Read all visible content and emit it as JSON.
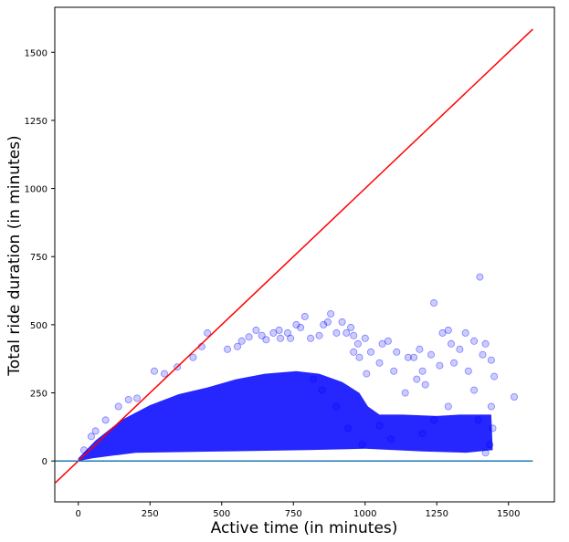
{
  "chart_data": {
    "type": "scatter",
    "title": "",
    "xlabel": "Active time (in minutes)",
    "ylabel": "Total ride duration (in minutes)",
    "xlim": [
      -82,
      1660
    ],
    "ylim": [
      -150,
      1665
    ],
    "x_ticks": [
      0,
      250,
      500,
      750,
      1000,
      1250,
      1500
    ],
    "y_ticks": [
      0,
      250,
      500,
      750,
      1000,
      1250,
      1500
    ],
    "grid": false,
    "point_color": "#0000ff",
    "point_opacity": 0.2,
    "reference_lines": [
      {
        "kind": "identity",
        "color": "#ff0000",
        "x": [
          -80,
          1585
        ],
        "y": [
          -80,
          1585
        ]
      },
      {
        "kind": "zero",
        "color": "#1f77b4",
        "x": [
          -80,
          1585
        ],
        "y": [
          0,
          0
        ]
      }
    ],
    "points": [
      [
        20,
        40
      ],
      [
        45,
        90
      ],
      [
        60,
        110
      ],
      [
        95,
        150
      ],
      [
        140,
        200
      ],
      [
        175,
        225
      ],
      [
        205,
        230
      ],
      [
        265,
        330
      ],
      [
        300,
        320
      ],
      [
        345,
        345
      ],
      [
        400,
        380
      ],
      [
        430,
        420
      ],
      [
        450,
        470
      ],
      [
        520,
        410
      ],
      [
        555,
        420
      ],
      [
        570,
        440
      ],
      [
        595,
        455
      ],
      [
        620,
        480
      ],
      [
        640,
        460
      ],
      [
        655,
        445
      ],
      [
        680,
        470
      ],
      [
        700,
        480
      ],
      [
        705,
        450
      ],
      [
        730,
        470
      ],
      [
        740,
        450
      ],
      [
        760,
        500
      ],
      [
        775,
        490
      ],
      [
        790,
        530
      ],
      [
        810,
        450
      ],
      [
        840,
        460
      ],
      [
        855,
        500
      ],
      [
        870,
        510
      ],
      [
        880,
        540
      ],
      [
        900,
        470
      ],
      [
        920,
        510
      ],
      [
        935,
        470
      ],
      [
        950,
        490
      ],
      [
        960,
        460
      ],
      [
        975,
        430
      ],
      [
        1000,
        450
      ],
      [
        1020,
        400
      ],
      [
        1060,
        430
      ],
      [
        1080,
        440
      ],
      [
        1110,
        400
      ],
      [
        1150,
        380
      ],
      [
        1170,
        380
      ],
      [
        1190,
        410
      ],
      [
        1200,
        330
      ],
      [
        1230,
        390
      ],
      [
        1240,
        580
      ],
      [
        1270,
        470
      ],
      [
        1290,
        480
      ],
      [
        1300,
        430
      ],
      [
        1330,
        410
      ],
      [
        1350,
        470
      ],
      [
        1380,
        440
      ],
      [
        1400,
        675
      ],
      [
        1420,
        430
      ],
      [
        1440,
        370
      ],
      [
        1450,
        310
      ],
      [
        1520,
        235
      ],
      [
        1180,
        300
      ],
      [
        1210,
        280
      ],
      [
        1260,
        350
      ],
      [
        1310,
        360
      ],
      [
        1360,
        330
      ],
      [
        1410,
        390
      ],
      [
        1380,
        260
      ],
      [
        1100,
        330
      ],
      [
        1050,
        360
      ],
      [
        1005,
        320
      ],
      [
        980,
        380
      ],
      [
        960,
        400
      ],
      [
        1140,
        250
      ],
      [
        1440,
        200
      ],
      [
        1445,
        120
      ],
      [
        1435,
        60
      ],
      [
        1420,
        30
      ],
      [
        1395,
        150
      ],
      [
        1290,
        200
      ],
      [
        1240,
        150
      ],
      [
        1200,
        100
      ],
      [
        1090,
        80
      ],
      [
        1050,
        130
      ],
      [
        990,
        60
      ],
      [
        940,
        120
      ],
      [
        900,
        200
      ],
      [
        850,
        260
      ],
      [
        820,
        300
      ]
    ]
  }
}
